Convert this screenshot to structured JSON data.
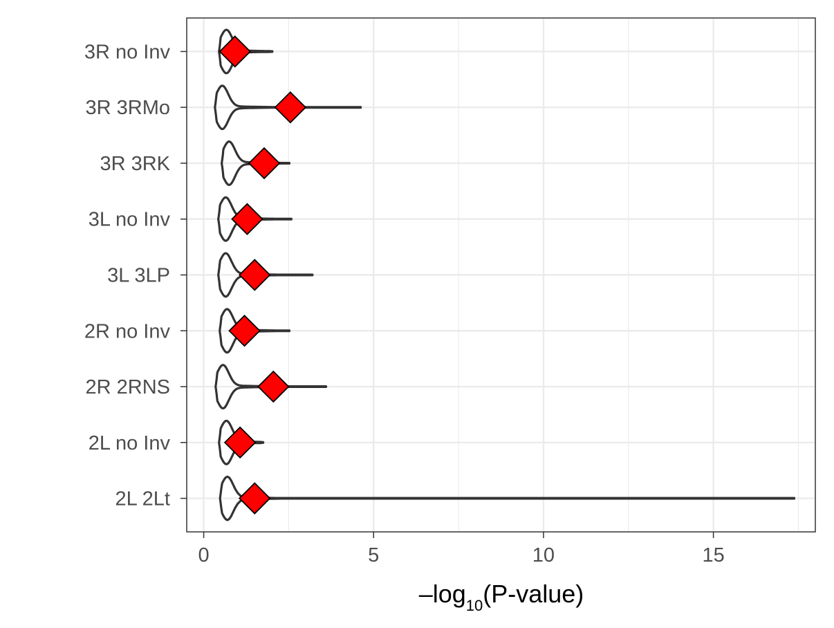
{
  "chart_data": {
    "type": "violin",
    "xlabel": {
      "prefix": "–log",
      "subscript": "10",
      "suffix": "(P-value)"
    },
    "ylabel": "",
    "xlim": [
      -0.5,
      18.0
    ],
    "x_ticks": [
      0,
      5,
      10,
      15
    ],
    "x_tick_labels": [
      "0",
      "5",
      "10",
      "15"
    ],
    "grid": true,
    "categories": [
      "3R no Inv",
      "3R 3RMo",
      "3R 3RK",
      "3L no Inv",
      "3L 3LP",
      "2R no Inv",
      "2R 2RNS",
      "2L no Inv",
      "2L 2Lt"
    ],
    "series": [
      {
        "values": [
          0.92,
          2.55,
          1.78,
          1.28,
          1.5,
          1.2,
          2.05,
          1.07,
          1.5
        ],
        "ranges": [
          [
            0.45,
            2.02
          ],
          [
            0.33,
            4.62
          ],
          [
            0.53,
            2.52
          ],
          [
            0.43,
            2.58
          ],
          [
            0.43,
            3.2
          ],
          [
            0.47,
            2.52
          ],
          [
            0.35,
            3.6
          ],
          [
            0.45,
            1.75
          ],
          [
            0.48,
            17.38
          ]
        ]
      }
    ],
    "colors": {
      "marker_fill": "#ff0000",
      "marker_stroke": "#000000",
      "violin_stroke": "#333333",
      "grid": "#ebebeb",
      "panel_border": "#333333"
    }
  }
}
